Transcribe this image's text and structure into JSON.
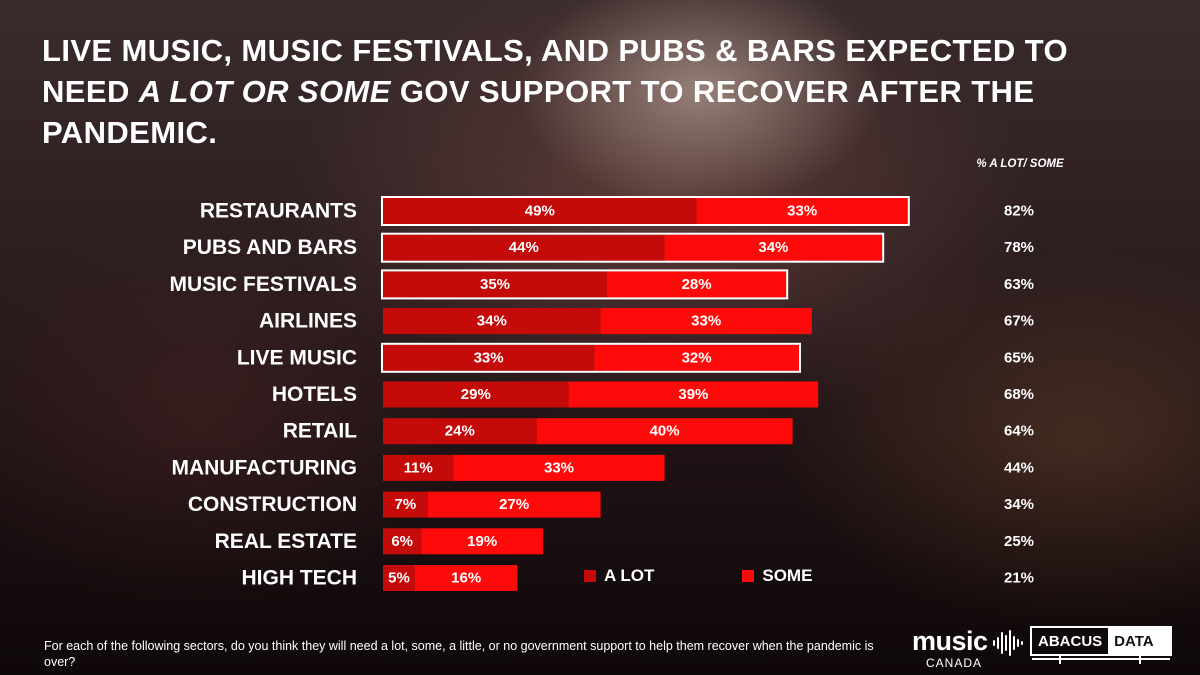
{
  "title": {
    "part1": "LIVE MUSIC, MUSIC FESTIVALS, AND PUBS & BARS EXPECTED TO NEED ",
    "emphasis": "A LOT OR SOME",
    "part2": " GOV SUPPORT TO RECOVER AFTER THE PANDEMIC."
  },
  "chart_data": {
    "type": "bar",
    "orientation": "horizontal",
    "stacked": true,
    "total_column_header": "% A LOT/ SOME",
    "categories": [
      "RESTAURANTS",
      "PUBS AND BARS",
      "MUSIC FESTIVALS",
      "AIRLINES",
      "LIVE MUSIC",
      "HOTELS",
      "RETAIL",
      "MANUFACTURING",
      "CONSTRUCTION",
      "REAL ESTATE",
      "HIGH TECH"
    ],
    "series": [
      {
        "name": "A LOT",
        "values": [
          49,
          44,
          35,
          34,
          33,
          29,
          24,
          11,
          7,
          6,
          5
        ],
        "labels": [
          "49%",
          "44%",
          "35%",
          "34%",
          "33%",
          "29%",
          "24%",
          "11%",
          "7%",
          "6%",
          "5%"
        ]
      },
      {
        "name": "SOME",
        "values": [
          33,
          34,
          28,
          33,
          32,
          39,
          40,
          33,
          27,
          19,
          16
        ],
        "labels": [
          "33%",
          "34%",
          "28%",
          "33%",
          "32%",
          "39%",
          "40%",
          "33%",
          "27%",
          "19%",
          "16%"
        ]
      }
    ],
    "totals": [
      "82%",
      "78%",
      "63%",
      "67%",
      "65%",
      "68%",
      "64%",
      "44%",
      "34%",
      "25%",
      "21%"
    ],
    "highlighted": [
      "RESTAURANTS",
      "PUBS AND BARS",
      "MUSIC FESTIVALS",
      "LIVE MUSIC"
    ],
    "legend_position": "bottom",
    "colors": {
      "a_lot": "#c50a0a",
      "some": "#ff0a0a",
      "highlight_border": "#ffffff"
    }
  },
  "legend": {
    "a_lot": "A LOT",
    "some": "SOME"
  },
  "question": "For each of the following sectors, do you think they will need a lot, some, a little, or no government support to help them recover when the pandemic is over?",
  "logos": {
    "music": {
      "word": "music",
      "sub": "CANADA"
    },
    "abacus": {
      "left": "ABACUS",
      "right": "DATA"
    }
  }
}
